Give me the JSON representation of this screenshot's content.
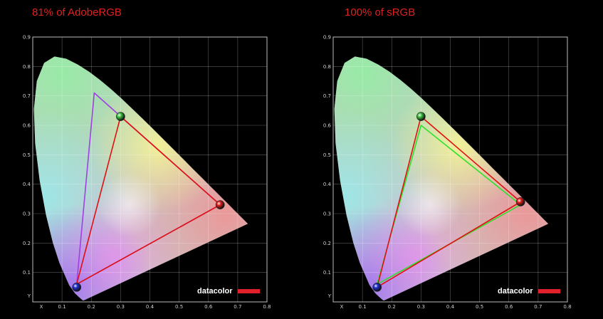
{
  "chart_data": [
    {
      "type": "scatter",
      "title": "81% of AdobeRGB",
      "xlabel": "X",
      "ylabel": "Y",
      "xlim": [
        0.0,
        0.8
      ],
      "ylim": [
        0.0,
        0.9
      ],
      "x_ticks": [
        "0.1",
        "0.2",
        "0.3",
        "0.4",
        "0.5",
        "0.6",
        "0.7",
        "0.8"
      ],
      "y_ticks": [
        "0.1",
        "0.2",
        "0.3",
        "0.4",
        "0.5",
        "0.6",
        "0.7",
        "0.8",
        "0.9"
      ],
      "grid": true,
      "series": [
        {
          "color": "#a040e0",
          "points": [
            [
              0.21,
              0.71
            ],
            [
              0.64,
              0.33
            ],
            [
              0.15,
              0.06
            ]
          ]
        },
        {
          "color": "#e01010",
          "points": [
            [
              0.3,
              0.63
            ],
            [
              0.64,
              0.33
            ],
            [
              0.15,
              0.06
            ]
          ]
        }
      ],
      "markers": [
        {
          "x": 0.3,
          "y": 0.63,
          "color": "#40c040"
        },
        {
          "x": 0.64,
          "y": 0.33,
          "color": "#e02020"
        },
        {
          "x": 0.15,
          "y": 0.05,
          "color": "#2030d0"
        }
      ],
      "logo": "datacolor"
    },
    {
      "type": "scatter",
      "title": "100% of sRGB",
      "xlabel": "X",
      "ylabel": "Y",
      "xlim": [
        0.0,
        0.8
      ],
      "ylim": [
        0.0,
        0.9
      ],
      "x_ticks": [
        "0.1",
        "0.2",
        "0.3",
        "0.4",
        "0.5",
        "0.6",
        "0.7",
        "0.8"
      ],
      "y_ticks": [
        "0.1",
        "0.2",
        "0.3",
        "0.4",
        "0.5",
        "0.6",
        "0.7",
        "0.8",
        "0.9"
      ],
      "grid": true,
      "series": [
        {
          "color": "#30e030",
          "points": [
            [
              0.3,
              0.6
            ],
            [
              0.64,
              0.33
            ],
            [
              0.15,
              0.06
            ]
          ]
        },
        {
          "color": "#e01010",
          "points": [
            [
              0.3,
              0.63
            ],
            [
              0.64,
              0.34
            ],
            [
              0.15,
              0.05
            ]
          ]
        }
      ],
      "markers": [
        {
          "x": 0.3,
          "y": 0.63,
          "color": "#40c040"
        },
        {
          "x": 0.64,
          "y": 0.34,
          "color": "#e02020"
        },
        {
          "x": 0.15,
          "y": 0.05,
          "color": "#2030d0"
        }
      ],
      "logo": "datacolor"
    }
  ]
}
